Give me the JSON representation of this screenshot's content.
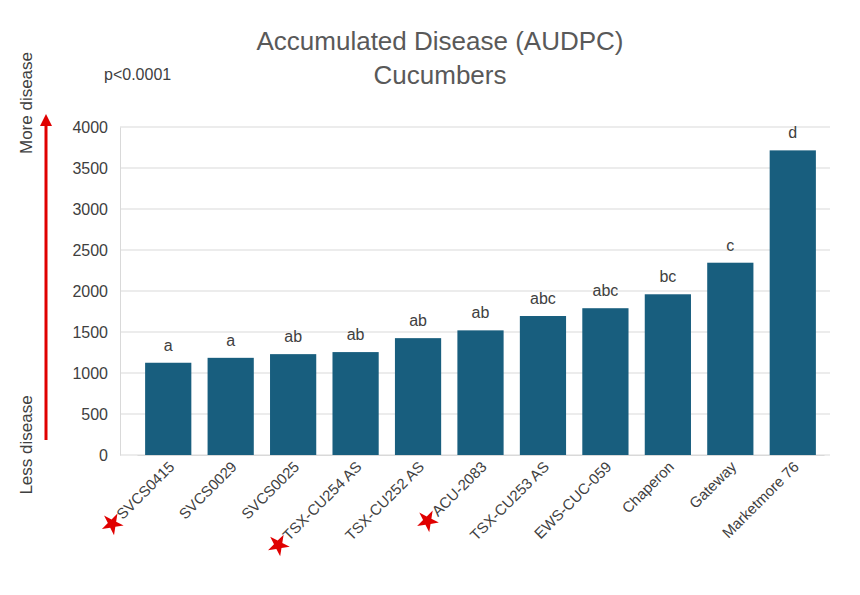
{
  "chart_data": {
    "type": "bar",
    "title": "Accumulated Disease (AUDPC)",
    "subtitle": "Cucumbers",
    "annotations": [
      "p<0.0001",
      "More disease",
      "Less disease"
    ],
    "categories": [
      "SVCS0415",
      "SVCS0029",
      "SVCS0025",
      "TSX-CU254 AS",
      "TSX-CU252 AS",
      "ACU-2083",
      "TSX-CU253 AS",
      "EWS-CUC-059",
      "Chaperon",
      "Gateway",
      "Marketmore 76"
    ],
    "values": [
      1125,
      1185,
      1230,
      1255,
      1425,
      1520,
      1695,
      1790,
      1960,
      2345,
      3715
    ],
    "group_letters": [
      "a",
      "a",
      "ab",
      "ab",
      "ab",
      "ab",
      "abc",
      "abc",
      "bc",
      "c",
      "d"
    ],
    "starred": [
      true,
      false,
      false,
      true,
      false,
      true,
      false,
      false,
      false,
      false,
      false
    ],
    "color": "#185e7e",
    "ylim": [
      0,
      4000
    ],
    "yticks": [
      0,
      500,
      1000,
      1500,
      2000,
      2500,
      3000,
      3500,
      4000
    ],
    "grid": true
  }
}
